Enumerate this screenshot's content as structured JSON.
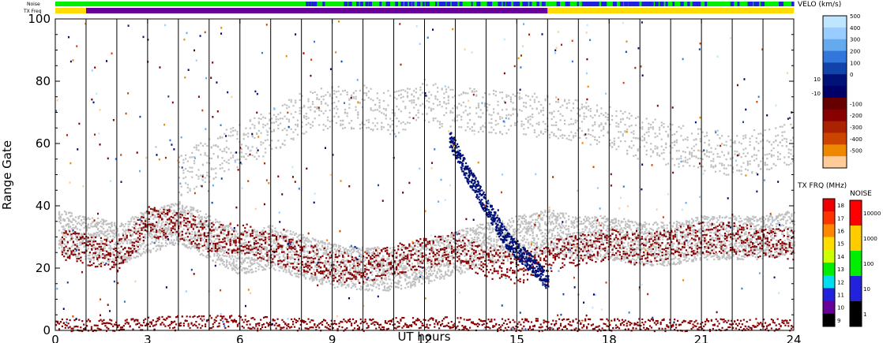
{
  "chart_data": {
    "type": "scatter",
    "xlabel": "UT hours",
    "ylabel": "Range Gate",
    "xlim": [
      0,
      24
    ],
    "ylim": [
      0,
      100
    ],
    "x_ticks": [
      "0",
      "3",
      "6",
      "9",
      "12",
      "15",
      "18",
      "21",
      "24"
    ],
    "y_ticks": [
      "0",
      "20",
      "40",
      "60",
      "80",
      "100"
    ],
    "grid": "vertical lines every hour",
    "top_strips": [
      {
        "label": "Noise",
        "description_colors": [
          "#00ee00",
          "#2222dd"
        ]
      },
      {
        "label": "TX Freq",
        "segments": [
          {
            "x": [
              0,
              1
            ],
            "color": "#ffdd00"
          },
          {
            "x": [
              1,
              16
            ],
            "color": "#660099"
          },
          {
            "x": [
              16,
              24
            ],
            "color": "#ffdd00"
          }
        ]
      }
    ],
    "velocity_colorbar": {
      "title": "VELO (km/s)",
      "ticks": [
        "500",
        "400",
        "300",
        "200",
        "100",
        "0",
        "10",
        "-10",
        "-100",
        "-200",
        "-300",
        "-400",
        "-500"
      ],
      "colors": [
        "#bfe6ff",
        "#99ccff",
        "#66aaee",
        "#3377dd",
        "#1144aa",
        "#001177",
        "#000066",
        "#660000",
        "#880000",
        "#aa2200",
        "#cc4400",
        "#ee8800",
        "#ffcc99"
      ]
    },
    "txfreq_colorbar": {
      "title": "TX FRQ (MHz)",
      "ticks": [
        "18",
        "17",
        "16",
        "15",
        "14",
        "13",
        "12",
        "11",
        "10",
        "9"
      ],
      "colors": [
        "#ee0000",
        "#ff3300",
        "#ff8800",
        "#ffdd00",
        "#ccff00",
        "#00ee00",
        "#00ddee",
        "#2222dd",
        "#660099",
        "#000000"
      ]
    },
    "noise_colorbar": {
      "title": "NOISE",
      "ticks": [
        "10000",
        "1000",
        "100",
        "10",
        "1"
      ],
      "colors": [
        "#ff0000",
        "#ffcc00",
        "#00ee00",
        "#2222dd",
        "#000000"
      ]
    },
    "series": [
      {
        "kind": "ground-scatter",
        "color": "#c0c0c0",
        "x": [
          0.1,
          1.0,
          2.0,
          3.0,
          4.0,
          5.0,
          6.0,
          7.0,
          8.0,
          9.0,
          10.0,
          11.0,
          12.0,
          13.0,
          14.0,
          15.0,
          16.0,
          17.0,
          18.0,
          19.0,
          20.0,
          21.0,
          22.0,
          23.0,
          24.0
        ],
        "y": [
          32,
          30,
          28,
          32,
          35,
          30,
          25,
          27,
          24,
          21,
          20,
          20,
          22,
          25,
          28,
          30,
          32,
          30,
          30,
          28,
          28,
          30,
          30,
          30,
          32
        ]
      },
      {
        "kind": "negative-velocity",
        "color": "#880000",
        "x": [
          0.2,
          1.0,
          2.0,
          3.0,
          4.0,
          5.0,
          6.0,
          7.0,
          8.0,
          9.0,
          10.0,
          11.0,
          12.0,
          13.0,
          14.0,
          15.0,
          16.0,
          17.0,
          18.0,
          19.0,
          20.0,
          21.0,
          22.0,
          23.0,
          24.0
        ],
        "y": [
          28,
          26,
          24,
          35,
          34,
          30,
          30,
          27,
          24,
          21,
          20,
          23,
          25,
          27,
          22,
          20,
          24,
          26,
          28,
          26,
          28,
          30,
          30,
          28,
          28
        ]
      },
      {
        "kind": "positive-velocity",
        "color": "#001177",
        "x": [
          12.8,
          13.0,
          13.3,
          13.6,
          14.0,
          14.3,
          14.6,
          15.0,
          15.4,
          15.8,
          16.0
        ],
        "y": [
          62,
          58,
          52,
          47,
          40,
          35,
          30,
          26,
          22,
          18,
          16
        ]
      },
      {
        "kind": "high-altitude",
        "color": "#c0c0c0",
        "x": [
          4.0,
          5.0,
          6.0,
          7.0,
          8.0,
          9.0,
          10.0,
          11.0,
          12.0,
          12.5,
          17.0,
          18.0,
          19.0,
          20.0,
          21.0,
          22.0,
          23.0,
          24.0
        ],
        "y": [
          50,
          55,
          60,
          64,
          70,
          72,
          72,
          70,
          74,
          72,
          68,
          65,
          62,
          60,
          58,
          57,
          58,
          60
        ]
      },
      {
        "kind": "near-range",
        "color": "#880000",
        "x": [
          0.0,
          2.0,
          4.0,
          6.0,
          8.0,
          10.0,
          12.0,
          14.0,
          16.0,
          18.0,
          20.0,
          22.0,
          24.0
        ],
        "y": [
          2,
          2,
          3,
          3,
          2,
          2,
          3,
          2,
          2,
          2,
          2,
          2,
          2
        ]
      }
    ]
  }
}
